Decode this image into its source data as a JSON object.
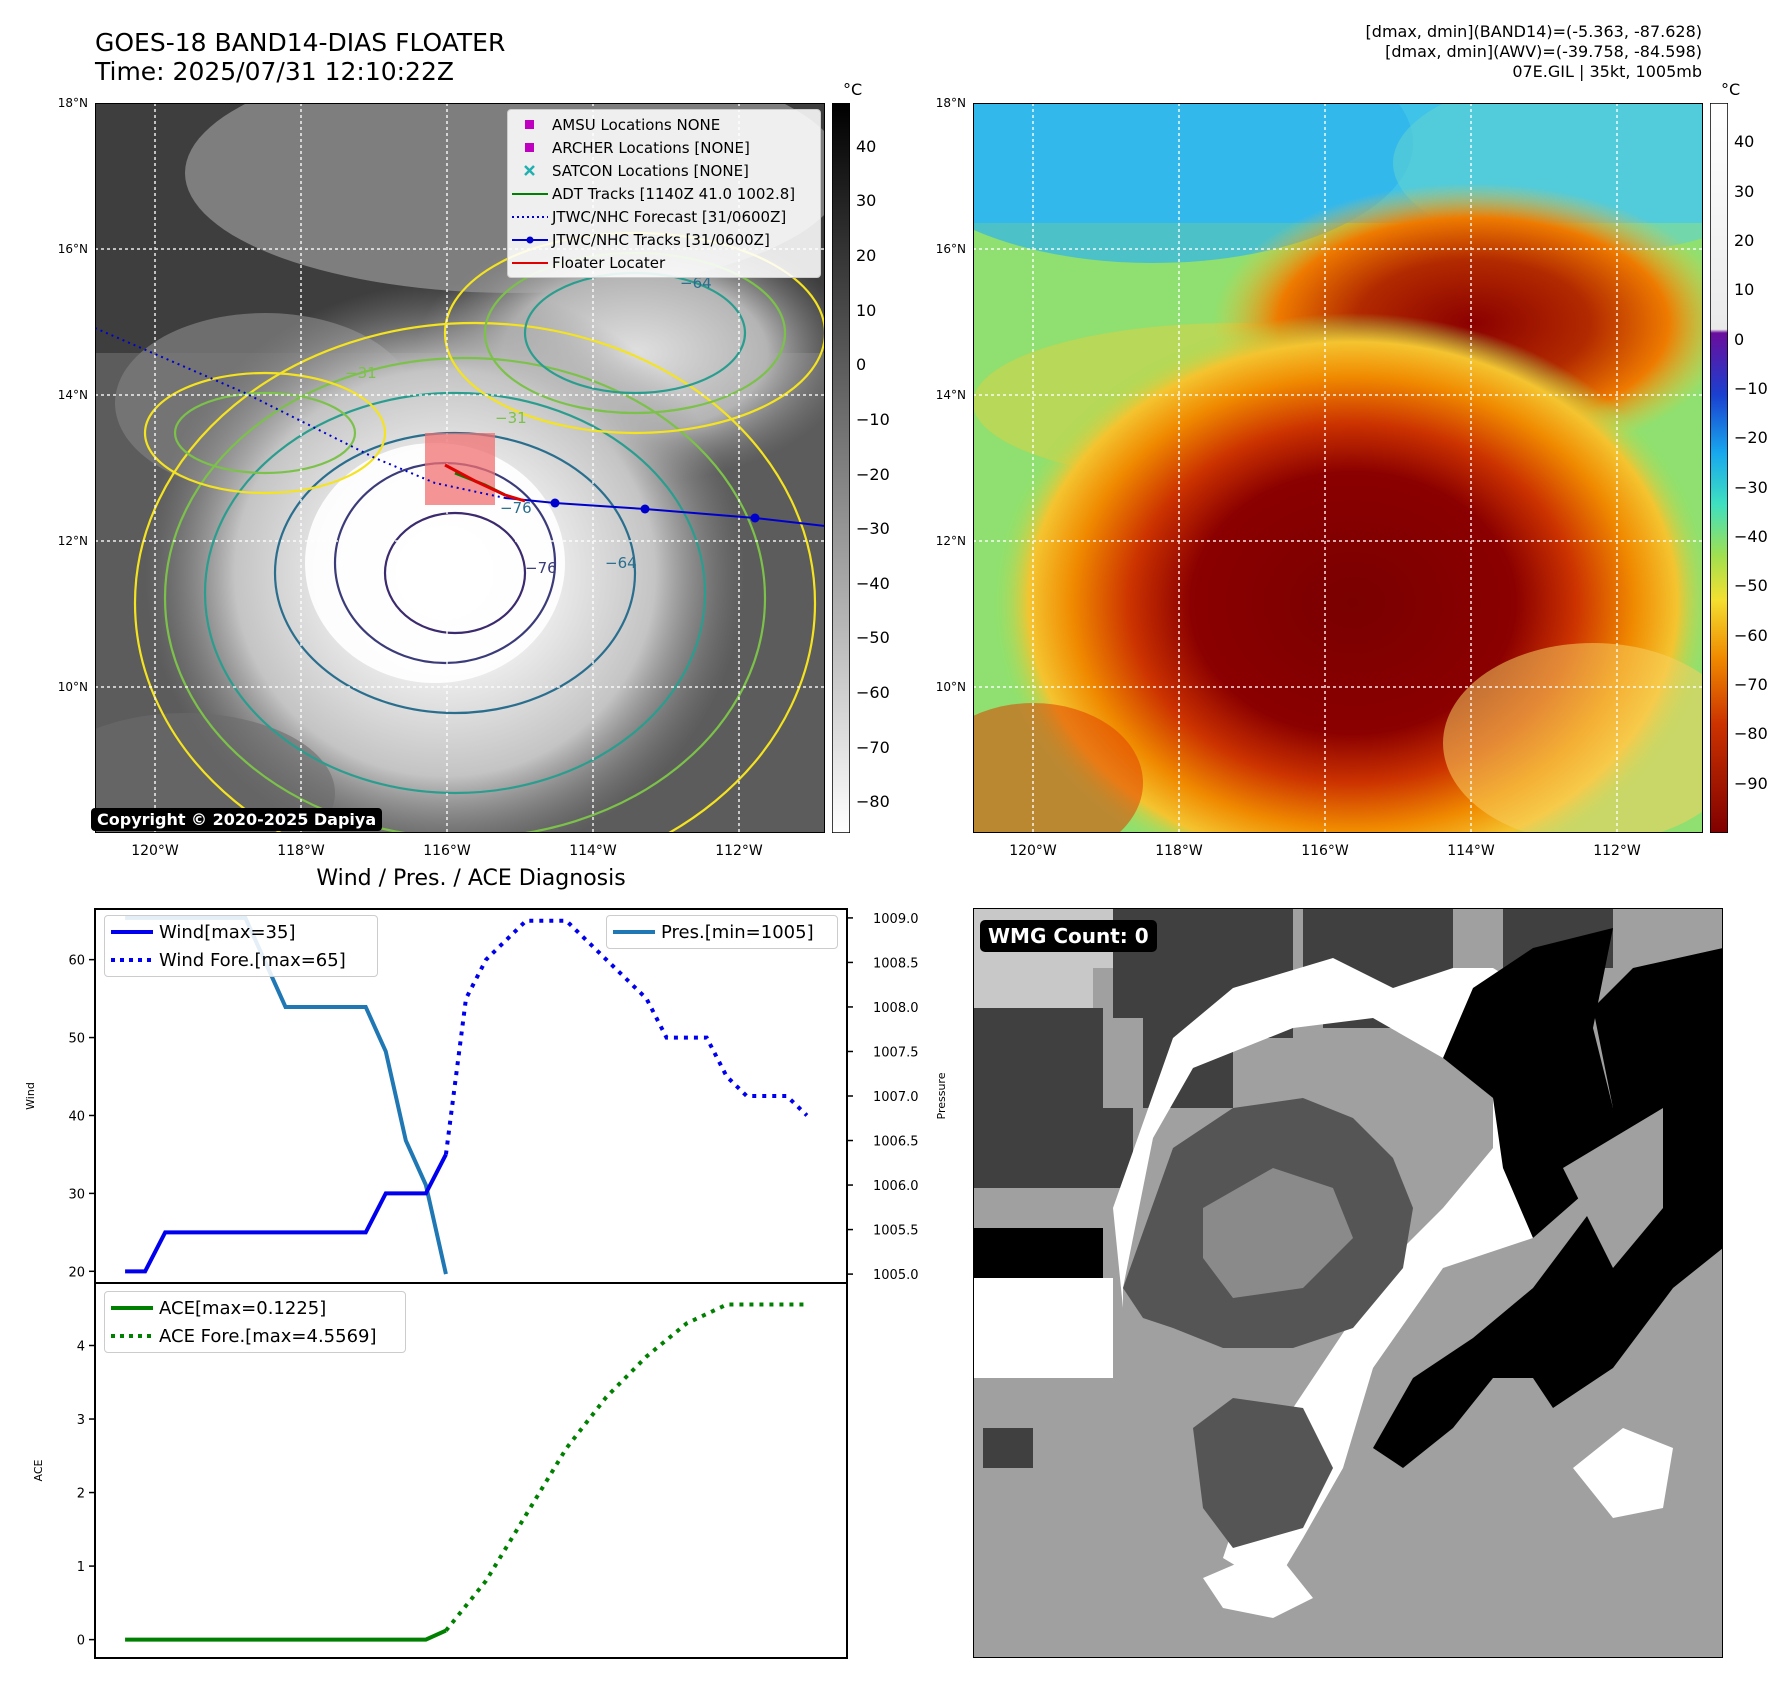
{
  "title": "GOES-18 BAND14-DIAS FLOATER\nTime: 2025/07/31 12:10:22Z",
  "stats": {
    "line1": "[dmax, dmin](BAND14)=(-5.363, -87.628)",
    "line2": "[dmax, dmin](AWV)=(-39.758, -84.598)",
    "line3": "07E.GIL | 35kt, 1005mb"
  },
  "map": {
    "lat_labels": [
      "18°N",
      "16°N",
      "14°N",
      "12°N",
      "10°N"
    ],
    "lon_labels": [
      "120°W",
      "118°W",
      "116°W",
      "114°W",
      "112°W"
    ],
    "colorbar_unit": "°C",
    "ir_colorbar_ticks": [
      "40",
      "30",
      "20",
      "10",
      "0",
      "−10",
      "−20",
      "−30",
      "−40",
      "−50",
      "−60",
      "−70",
      "−80"
    ],
    "wv_colorbar_ticks": [
      "40",
      "30",
      "20",
      "10",
      "0",
      "−10",
      "−20",
      "−30",
      "−40",
      "−50",
      "−60",
      "−70",
      "−80",
      "−90"
    ],
    "contour_labels": [
      "−64",
      "−31",
      "−76",
      "−76",
      "−64",
      "−31"
    ],
    "copyright": "Copyright © 2020-2025 Dapiya",
    "legend": [
      {
        "label": "AMSU Locations NONE",
        "symbol": "square",
        "color": "#c000c0"
      },
      {
        "label": "ARCHER Locations [NONE]",
        "symbol": "square",
        "color": "#c000c0"
      },
      {
        "label": "SATCON Locations [NONE]",
        "symbol": "x",
        "color": "#20b0b0"
      },
      {
        "label": "ADT Tracks [1140Z 41.0 1002.8]",
        "symbol": "line",
        "color": "#008000"
      },
      {
        "label": "JTWC/NHC Forecast [31/0600Z]",
        "symbol": "dotted",
        "color": "#0000cc"
      },
      {
        "label": "JTWC/NHC Tracks [31/0600Z]",
        "symbol": "line-dot",
        "color": "#0000cc"
      },
      {
        "label": "Floater Locater",
        "symbol": "line",
        "color": "#e00000"
      }
    ]
  },
  "diagnosis": {
    "title": "Wind / Pres. / ACE Diagnosis",
    "wind_ylabel": "Wind",
    "pres_ylabel": "Pressure",
    "ace_ylabel": "ACE",
    "wind_legend": [
      "Wind[max=35]",
      "Wind Fore.[max=65]"
    ],
    "pres_legend": [
      "Pres.[min=1005]"
    ],
    "ace_legend": [
      "ACE[max=0.1225]",
      "ACE Fore.[max=4.5569]"
    ]
  },
  "wmg": {
    "label": "WMG Count: 0"
  },
  "chart_data": [
    {
      "type": "line",
      "title": "Wind / Pres. / ACE Diagnosis",
      "ylabel": "Wind",
      "ylim": [
        18.5,
        66.5
      ],
      "yticks": [
        20,
        30,
        40,
        50,
        60
      ],
      "x": [
        0,
        1,
        2,
        3,
        4,
        5,
        6,
        7,
        8,
        9,
        10,
        11,
        12,
        13,
        14,
        15,
        16
      ],
      "series": [
        {
          "name": "Wind[max=35]",
          "color": "#0000ee",
          "style": "solid",
          "x": [
            0,
            1,
            2,
            3,
            4,
            5,
            6,
            7,
            8,
            9,
            10,
            11,
            12,
            13,
            14,
            15,
            16
          ],
          "values": [
            20,
            20,
            25,
            25,
            25,
            25,
            25,
            25,
            25,
            25,
            25,
            25,
            25,
            30,
            30,
            30,
            35
          ]
        },
        {
          "name": "Wind Fore.[max=65]",
          "color": "#0000ee",
          "style": "dotted",
          "x": [
            16,
            17,
            18,
            19,
            20,
            21,
            22,
            23,
            24,
            25,
            26,
            27,
            28,
            29,
            30,
            31,
            32,
            33,
            34
          ],
          "values": [
            35,
            55,
            60,
            62.5,
            65,
            65,
            65,
            62.5,
            60,
            57.5,
            55,
            50,
            50,
            50,
            45,
            42.5,
            42.5,
            42.5,
            40
          ]
        }
      ]
    },
    {
      "type": "line",
      "ylabel": "Pressure",
      "ylim": [
        1004.9,
        1009.1
      ],
      "yticks": [
        1005.0,
        1005.5,
        1006.0,
        1006.5,
        1007.0,
        1007.5,
        1008.0,
        1008.5,
        1009.0
      ],
      "series": [
        {
          "name": "Pres.[min=1005]",
          "color": "#1f77b4",
          "style": "solid",
          "x": [
            0,
            3,
            6,
            8,
            9,
            10,
            12,
            13,
            14,
            15,
            16
          ],
          "values": [
            1009,
            1009,
            1009,
            1008,
            1008,
            1008,
            1008,
            1007.5,
            1006.5,
            1006,
            1005
          ]
        }
      ]
    },
    {
      "type": "line",
      "ylabel": "ACE",
      "ylim": [
        -0.25,
        4.85
      ],
      "yticks": [
        0,
        1,
        2,
        3,
        4
      ],
      "series": [
        {
          "name": "ACE[max=0.1225]",
          "color": "#008000",
          "style": "solid",
          "x": [
            0,
            15,
            16
          ],
          "values": [
            0,
            0,
            0.1225
          ]
        },
        {
          "name": "ACE Fore.[max=4.5569]",
          "color": "#008000",
          "style": "dotted",
          "x": [
            16,
            18,
            20,
            22,
            24,
            26,
            28,
            30,
            32,
            34
          ],
          "values": [
            0.1225,
            0.8,
            1.7,
            2.6,
            3.3,
            3.85,
            4.3,
            4.5569,
            4.5569,
            4.5569
          ]
        }
      ]
    }
  ]
}
